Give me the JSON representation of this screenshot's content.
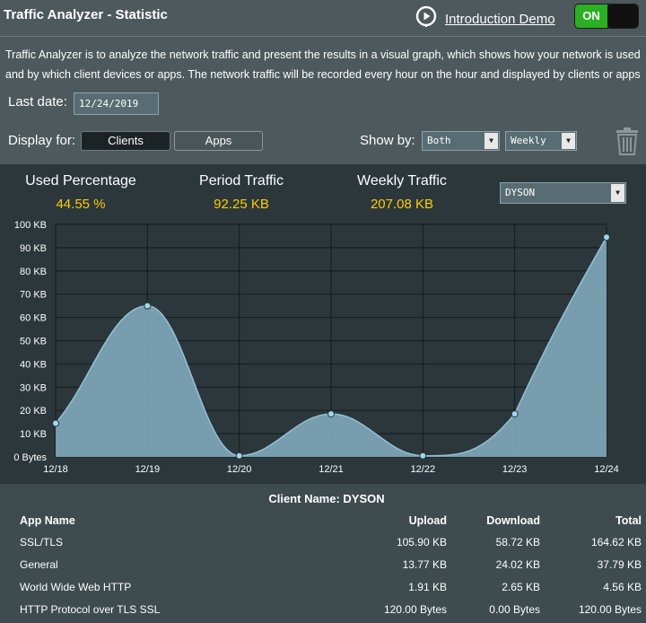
{
  "header": {
    "title": "Traffic Analyzer - Statistic",
    "demo_link": "Introduction Demo",
    "toggle_label": "ON"
  },
  "description": [
    "Traffic Analyzer is to analyze the network traffic and present the results in a visual graph, which shows how your network is used",
    "and by which client devices or apps. The network traffic will be recorded every hour on the hour and displayed by clients or apps"
  ],
  "controls": {
    "last_date_label": "Last date:",
    "last_date_value": "12/24/2019",
    "display_for_label": "Display for:",
    "clients_label": "Clients",
    "apps_label": "Apps",
    "show_by_label": "Show by:",
    "show_by_value": "Both",
    "period_value": "Weekly"
  },
  "stats": {
    "used_percentage_label": "Used Percentage",
    "used_percentage_value": "44.55 %",
    "period_traffic_label": "Period Traffic",
    "period_traffic_value": "92.25 KB",
    "weekly_traffic_label": "Weekly Traffic",
    "weekly_traffic_value": "207.08 KB",
    "client_select_value": "DYSON"
  },
  "chart_data": {
    "type": "area",
    "categories": [
      "12/18",
      "12/19",
      "12/20",
      "12/21",
      "12/22",
      "12/23",
      "12/24"
    ],
    "values": [
      14.5,
      65,
      0.5,
      18.5,
      0.5,
      18.5,
      94.5
    ],
    "y_ticks": [
      "0 Bytes",
      "10 KB",
      "20 KB",
      "30 KB",
      "40 KB",
      "50 KB",
      "60 KB",
      "70 KB",
      "80 KB",
      "90 KB",
      "100 KB"
    ],
    "ylim": [
      0,
      100
    ],
    "grid": true,
    "colors": {
      "fill": "#7ea6b9",
      "line": "#93c2d6",
      "point": "#9fd7ee",
      "grid": "#151b1d"
    }
  },
  "table": {
    "client_name": "Client Name: DYSON",
    "headers": [
      "App Name",
      "Upload",
      "Download",
      "Total"
    ],
    "rows": [
      [
        "SSL/TLS",
        "105.90 KB",
        "58.72 KB",
        "164.62 KB"
      ],
      [
        "General",
        "13.77 KB",
        "24.02 KB",
        "37.79 KB"
      ],
      [
        "World Wide Web HTTP",
        "1.91 KB",
        "2.65 KB",
        "4.56 KB"
      ],
      [
        "HTTP Protocol over TLS SSL",
        "120.00 Bytes",
        "0.00 Bytes",
        "120.00 Bytes"
      ]
    ]
  }
}
